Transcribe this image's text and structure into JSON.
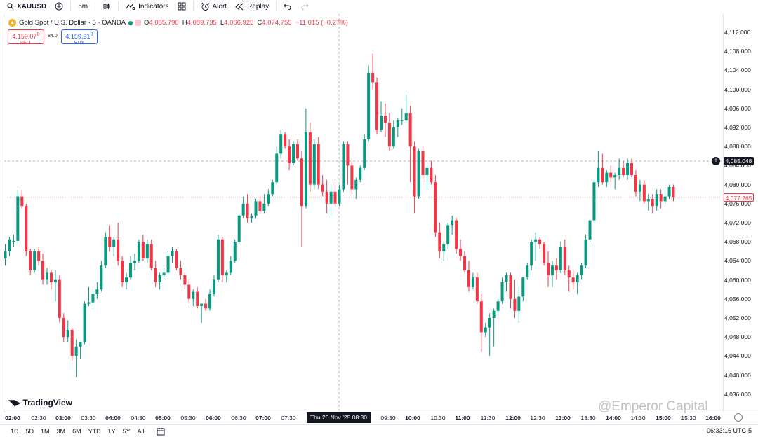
{
  "toolbar": {
    "symbol": "XAUUSD",
    "interval": "5m",
    "indicators_label": "Indicators",
    "alert_label": "Alert",
    "replay_label": "Replay"
  },
  "legend": {
    "title": "Gold Spot / U.S. Dollar · 5 · OANDA",
    "o_key": "O",
    "o_val": "4,085.790",
    "h_key": "H",
    "h_val": "4,089.735",
    "l_key": "L",
    "l_val": "4,066.925",
    "c_key": "C",
    "c_val": "4,074.755",
    "change": "−11.015 (−0.27%)"
  },
  "trade": {
    "sell_price": "4,159.07",
    "sell_sup": "0",
    "sell_label": "SELL",
    "buy_price": "4,159.91",
    "buy_sup": "0",
    "buy_label": "BUY",
    "spread": "84.0"
  },
  "price_axis": {
    "ticks": [
      "4,112.000",
      "4,108.000",
      "4,104.000",
      "4,100.000",
      "4,096.000",
      "4,092.000",
      "4,088.000",
      "4,084.000",
      "4,080.000",
      "4,076.000",
      "4,072.000",
      "4,068.000",
      "4,064.000",
      "4,060.000",
      "4,056.000",
      "4,052.000",
      "4,048.000",
      "4,044.000",
      "4,040.000",
      "4,036.000"
    ],
    "last_price": "4,085.048",
    "red_price": "4,077.265"
  },
  "time_axis": {
    "labels": [
      {
        "t": "02:00",
        "bold": true
      },
      {
        "t": "02:30",
        "bold": false
      },
      {
        "t": "03:00",
        "bold": true
      },
      {
        "t": "03:30",
        "bold": false
      },
      {
        "t": "04:00",
        "bold": true
      },
      {
        "t": "04:30",
        "bold": false
      },
      {
        "t": "05:00",
        "bold": true
      },
      {
        "t": "05:30",
        "bold": false
      },
      {
        "t": "06:00",
        "bold": true
      },
      {
        "t": "06:30",
        "bold": false
      },
      {
        "t": "07:00",
        "bold": true
      },
      {
        "t": "07:30",
        "bold": false
      },
      {
        "t": "09:30",
        "bold": false
      },
      {
        "t": "10:00",
        "bold": true
      },
      {
        "t": "10:30",
        "bold": false
      },
      {
        "t": "11:00",
        "bold": true
      },
      {
        "t": "11:30",
        "bold": false
      },
      {
        "t": "12:00",
        "bold": true
      },
      {
        "t": "12:30",
        "bold": false
      },
      {
        "t": "13:00",
        "bold": true
      },
      {
        "t": "13:30",
        "bold": false
      },
      {
        "t": "14:00",
        "bold": true
      },
      {
        "t": "14:30",
        "bold": false
      },
      {
        "t": "15:00",
        "bold": true
      },
      {
        "t": "15:30",
        "bold": false
      },
      {
        "t": "16:00",
        "bold": true
      }
    ],
    "crosshair_label": "Thu 20 Nov '25   08:30"
  },
  "ranges": [
    "1D",
    "5D",
    "1M",
    "3M",
    "6M",
    "YTD",
    "1Y",
    "5Y",
    "All"
  ],
  "time_readout": "06:33:16 UTC-5",
  "logo_text": "TradingView",
  "watermark": "@Emperor Capital",
  "colors": {
    "up": "#089981",
    "down": "#f23645",
    "text": "#131722"
  },
  "chart_data": {
    "type": "candlestick",
    "interval": "5m",
    "ylim": [
      4034,
      4114
    ],
    "ohlc": [
      [
        4064.5,
        4067.5,
        4063.0,
        4066.0
      ],
      [
        4066.0,
        4069.0,
        4065.0,
        4068.5
      ],
      [
        4068.0,
        4069.5,
        4067.0,
        4068.2
      ],
      [
        4068.2,
        4079.0,
        4067.8,
        4077.5
      ],
      [
        4077.5,
        4078.8,
        4075.0,
        4075.5
      ],
      [
        4075.5,
        4076.0,
        4065.0,
        4066.0
      ],
      [
        4066.0,
        4066.5,
        4061.0,
        4062.0
      ],
      [
        4062.0,
        4066.5,
        4061.5,
        4066.0
      ],
      [
        4066.0,
        4067.0,
        4063.0,
        4064.0
      ],
      [
        4064.0,
        4065.5,
        4059.0,
        4060.0
      ],
      [
        4060.0,
        4062.5,
        4059.0,
        4061.5
      ],
      [
        4061.5,
        4062.0,
        4058.0,
        4059.5
      ],
      [
        4059.5,
        4062.0,
        4055.5,
        4060.0
      ],
      [
        4060.0,
        4061.0,
        4051.0,
        4052.0
      ],
      [
        4052.0,
        4053.0,
        4047.0,
        4048.0
      ],
      [
        4048.0,
        4051.5,
        4047.0,
        4049.5
      ],
      [
        4049.5,
        4050.0,
        4043.0,
        4044.0
      ],
      [
        4044.0,
        4047.5,
        4039.5,
        4046.0
      ],
      [
        4046.0,
        4047.0,
        4043.5,
        4047.0
      ],
      [
        4047.0,
        4055.5,
        4046.5,
        4055.0
      ],
      [
        4055.0,
        4058.5,
        4054.5,
        4055.3
      ],
      [
        4055.3,
        4058.0,
        4054.0,
        4057.0
      ],
      [
        4057.0,
        4059.5,
        4056.0,
        4058.0
      ],
      [
        4058.0,
        4064.0,
        4057.5,
        4063.0
      ],
      [
        4063.0,
        4070.0,
        4062.5,
        4069.0
      ],
      [
        4069.0,
        4071.5,
        4066.0,
        4067.0
      ],
      [
        4067.0,
        4069.0,
        4065.0,
        4068.5
      ],
      [
        4068.5,
        4072.0,
        4063.0,
        4064.0
      ],
      [
        4064.0,
        4065.0,
        4058.5,
        4059.5
      ],
      [
        4059.5,
        4061.5,
        4058.0,
        4060.5
      ],
      [
        4060.5,
        4065.0,
        4060.0,
        4063.5
      ],
      [
        4063.5,
        4065.5,
        4062.0,
        4064.0
      ],
      [
        4064.0,
        4068.5,
        4063.5,
        4068.0
      ],
      [
        4068.0,
        4069.5,
        4064.0,
        4064.5
      ],
      [
        4064.5,
        4068.5,
        4063.5,
        4067.5
      ],
      [
        4067.5,
        4068.5,
        4062.0,
        4062.5
      ],
      [
        4062.5,
        4064.0,
        4058.5,
        4059.5
      ],
      [
        4059.5,
        4061.5,
        4058.0,
        4061.0
      ],
      [
        4061.0,
        4062.5,
        4060.0,
        4061.5
      ],
      [
        4061.5,
        4066.0,
        4061.0,
        4065.0
      ],
      [
        4065.0,
        4067.0,
        4063.5,
        4066.0
      ],
      [
        4066.0,
        4066.5,
        4062.0,
        4062.5
      ],
      [
        4062.5,
        4064.0,
        4060.0,
        4061.0
      ],
      [
        4061.0,
        4061.5,
        4058.0,
        4059.0
      ],
      [
        4059.0,
        4060.0,
        4055.0,
        4056.0
      ],
      [
        4056.0,
        4058.0,
        4054.5,
        4057.5
      ],
      [
        4057.5,
        4058.5,
        4054.0,
        4054.5
      ],
      [
        4054.5,
        4055.0,
        4051.0,
        4055.0
      ],
      [
        4055.0,
        4056.0,
        4053.5,
        4054.0
      ],
      [
        4054.0,
        4058.0,
        4053.5,
        4057.0
      ],
      [
        4057.0,
        4061.0,
        4056.5,
        4060.0
      ],
      [
        4060.0,
        4069.5,
        4059.5,
        4068.5
      ],
      [
        4068.5,
        4069.0,
        4059.5,
        4061.0
      ],
      [
        4061.0,
        4062.0,
        4059.5,
        4061.5
      ],
      [
        4061.5,
        4065.0,
        4061.0,
        4064.0
      ],
      [
        4064.0,
        4068.5,
        4063.5,
        4068.0
      ],
      [
        4068.0,
        4074.0,
        4067.5,
        4073.5
      ],
      [
        4073.5,
        4077.5,
        4073.0,
        4076.0
      ],
      [
        4076.0,
        4078.0,
        4072.0,
        4073.0
      ],
      [
        4073.0,
        4074.0,
        4072.0,
        4073.5
      ],
      [
        4073.5,
        4077.0,
        4073.0,
        4076.5
      ],
      [
        4076.5,
        4077.5,
        4074.0,
        4074.5
      ],
      [
        4074.5,
        4078.0,
        4074.0,
        4076.0
      ],
      [
        4076.0,
        4079.0,
        4075.5,
        4078.0
      ],
      [
        4078.0,
        4081.0,
        4077.5,
        4080.5
      ],
      [
        4080.5,
        4088.0,
        4080.0,
        4086.5
      ],
      [
        4086.5,
        4091.5,
        4085.5,
        4090.5
      ],
      [
        4090.5,
        4091.0,
        4087.5,
        4088.0
      ],
      [
        4088.0,
        4089.5,
        4083.0,
        4084.5
      ],
      [
        4084.5,
        4089.0,
        4084.0,
        4088.5
      ],
      [
        4088.5,
        4089.5,
        4085.0,
        4085.5
      ],
      [
        4085.5,
        4087.0,
        4067.0,
        4075.5
      ],
      [
        4075.5,
        4096.0,
        4075.0,
        4091.0
      ],
      [
        4091.0,
        4093.0,
        4078.5,
        4080.0
      ],
      [
        4080.0,
        4089.5,
        4079.0,
        4088.5
      ],
      [
        4088.5,
        4090.0,
        4079.0,
        4080.0
      ],
      [
        4080.0,
        4082.0,
        4077.5,
        4078.5
      ],
      [
        4078.5,
        4081.0,
        4074.0,
        4076.0
      ],
      [
        4076.0,
        4080.0,
        4073.5,
        4078.5
      ],
      [
        4078.5,
        4080.5,
        4075.5,
        4076.0
      ],
      [
        4076.0,
        4080.0,
        4075.5,
        4079.0
      ],
      [
        4079.0,
        4089.0,
        4078.5,
        4088.5
      ],
      [
        4088.5,
        4089.0,
        4080.0,
        4084.0
      ],
      [
        4084.0,
        4085.0,
        4078.0,
        4079.0
      ],
      [
        4079.0,
        4081.5,
        4077.0,
        4081.0
      ],
      [
        4081.0,
        4084.0,
        4080.5,
        4083.5
      ],
      [
        4083.5,
        4090.5,
        4083.0,
        4089.5
      ],
      [
        4089.5,
        4105.0,
        4089.0,
        4103.5
      ],
      [
        4103.5,
        4107.5,
        4100.0,
        4101.5
      ],
      [
        4101.5,
        4102.5,
        4090.5,
        4091.5
      ],
      [
        4091.5,
        4097.5,
        4091.0,
        4094.5
      ],
      [
        4094.5,
        4097.0,
        4090.0,
        4093.0
      ],
      [
        4093.0,
        4095.0,
        4087.0,
        4088.0
      ],
      [
        4088.0,
        4093.5,
        4087.5,
        4092.0
      ],
      [
        4092.0,
        4094.0,
        4090.0,
        4093.5
      ],
      [
        4093.5,
        4096.0,
        4092.5,
        4093.5
      ],
      [
        4093.5,
        4099.0,
        4093.0,
        4095.0
      ],
      [
        4095.0,
        4096.5,
        4080.5,
        4088.0
      ],
      [
        4088.0,
        4089.0,
        4074.0,
        4077.5
      ],
      [
        4077.5,
        4087.5,
        4077.0,
        4087.0
      ],
      [
        4087.0,
        4088.0,
        4080.5,
        4082.0
      ],
      [
        4082.0,
        4084.0,
        4079.0,
        4083.5
      ],
      [
        4083.5,
        4085.0,
        4080.0,
        4080.5
      ],
      [
        4080.5,
        4082.0,
        4069.0,
        4070.0
      ],
      [
        4070.0,
        4072.0,
        4064.5,
        4066.0
      ],
      [
        4066.0,
        4068.0,
        4064.0,
        4067.5
      ],
      [
        4067.5,
        4072.0,
        4066.5,
        4071.5
      ],
      [
        4071.5,
        4073.5,
        4069.5,
        4072.5
      ],
      [
        4072.5,
        4073.0,
        4065.5,
        4066.5
      ],
      [
        4066.5,
        4068.5,
        4064.0,
        4065.0
      ],
      [
        4065.0,
        4066.0,
        4061.5,
        4062.0
      ],
      [
        4062.0,
        4064.0,
        4057.5,
        4058.5
      ],
      [
        4058.5,
        4061.5,
        4058.0,
        4060.5
      ],
      [
        4060.5,
        4061.5,
        4055.0,
        4055.5
      ],
      [
        4055.5,
        4057.0,
        4045.0,
        4049.0
      ],
      [
        4049.0,
        4051.0,
        4048.0,
        4050.0
      ],
      [
        4050.0,
        4053.0,
        4044.0,
        4052.0
      ],
      [
        4052.0,
        4054.0,
        4046.0,
        4053.5
      ],
      [
        4053.5,
        4056.0,
        4052.5,
        4055.5
      ],
      [
        4055.5,
        4060.5,
        4055.0,
        4059.5
      ],
      [
        4059.5,
        4061.5,
        4057.5,
        4061.0
      ],
      [
        4061.0,
        4061.5,
        4054.0,
        4056.0
      ],
      [
        4056.0,
        4060.0,
        4052.0,
        4053.5
      ],
      [
        4053.5,
        4058.5,
        4051.0,
        4056.5
      ],
      [
        4056.5,
        4060.5,
        4055.5,
        4060.5
      ],
      [
        4060.5,
        4063.5,
        4060.0,
        4063.0
      ],
      [
        4063.0,
        4068.5,
        4062.0,
        4068.0
      ],
      [
        4068.0,
        4070.0,
        4064.0,
        4068.5
      ],
      [
        4068.5,
        4069.0,
        4066.5,
        4067.5
      ],
      [
        4067.5,
        4068.0,
        4063.0,
        4063.5
      ],
      [
        4063.5,
        4066.0,
        4058.5,
        4061.0
      ],
      [
        4061.0,
        4064.0,
        4058.5,
        4063.0
      ],
      [
        4063.0,
        4064.5,
        4060.0,
        4062.0
      ],
      [
        4062.0,
        4068.0,
        4061.5,
        4067.0
      ],
      [
        4067.0,
        4068.5,
        4061.0,
        4062.0
      ],
      [
        4062.0,
        4063.0,
        4057.5,
        4060.5
      ],
      [
        4060.5,
        4062.0,
        4058.0,
        4059.5
      ],
      [
        4059.5,
        4061.5,
        4057.0,
        4061.0
      ],
      [
        4061.0,
        4063.5,
        4060.0,
        4063.0
      ],
      [
        4063.0,
        4069.5,
        4062.5,
        4068.5
      ],
      [
        4068.5,
        4072.5,
        4068.0,
        4072.5
      ],
      [
        4072.5,
        4081.0,
        4072.0,
        4080.5
      ],
      [
        4080.5,
        4087.0,
        4079.5,
        4083.5
      ],
      [
        4083.5,
        4086.5,
        4080.0,
        4080.5
      ],
      [
        4080.5,
        4083.0,
        4079.5,
        4082.5
      ],
      [
        4082.5,
        4084.0,
        4080.5,
        4081.5
      ],
      [
        4081.5,
        4082.5,
        4079.0,
        4082.0
      ],
      [
        4082.0,
        4085.5,
        4081.0,
        4083.5
      ],
      [
        4083.5,
        4085.0,
        4081.5,
        4082.0
      ],
      [
        4082.0,
        4085.5,
        4081.0,
        4084.5
      ],
      [
        4084.5,
        4085.5,
        4081.5,
        4082.0
      ],
      [
        4082.0,
        4083.0,
        4077.5,
        4078.5
      ],
      [
        4078.5,
        4081.0,
        4076.5,
        4080.0
      ],
      [
        4080.0,
        4081.0,
        4076.0,
        4076.5
      ],
      [
        4076.5,
        4078.0,
        4074.5,
        4077.0
      ],
      [
        4077.0,
        4078.0,
        4074.0,
        4075.5
      ],
      [
        4075.5,
        4079.0,
        4074.5,
        4078.0
      ],
      [
        4078.0,
        4079.0,
        4075.0,
        4076.5
      ],
      [
        4076.5,
        4079.5,
        4076.0,
        4077.5
      ],
      [
        4077.5,
        4080.0,
        4077.0,
        4079.5
      ],
      [
        4079.5,
        4080.0,
        4076.5,
        4077.3
      ]
    ]
  }
}
